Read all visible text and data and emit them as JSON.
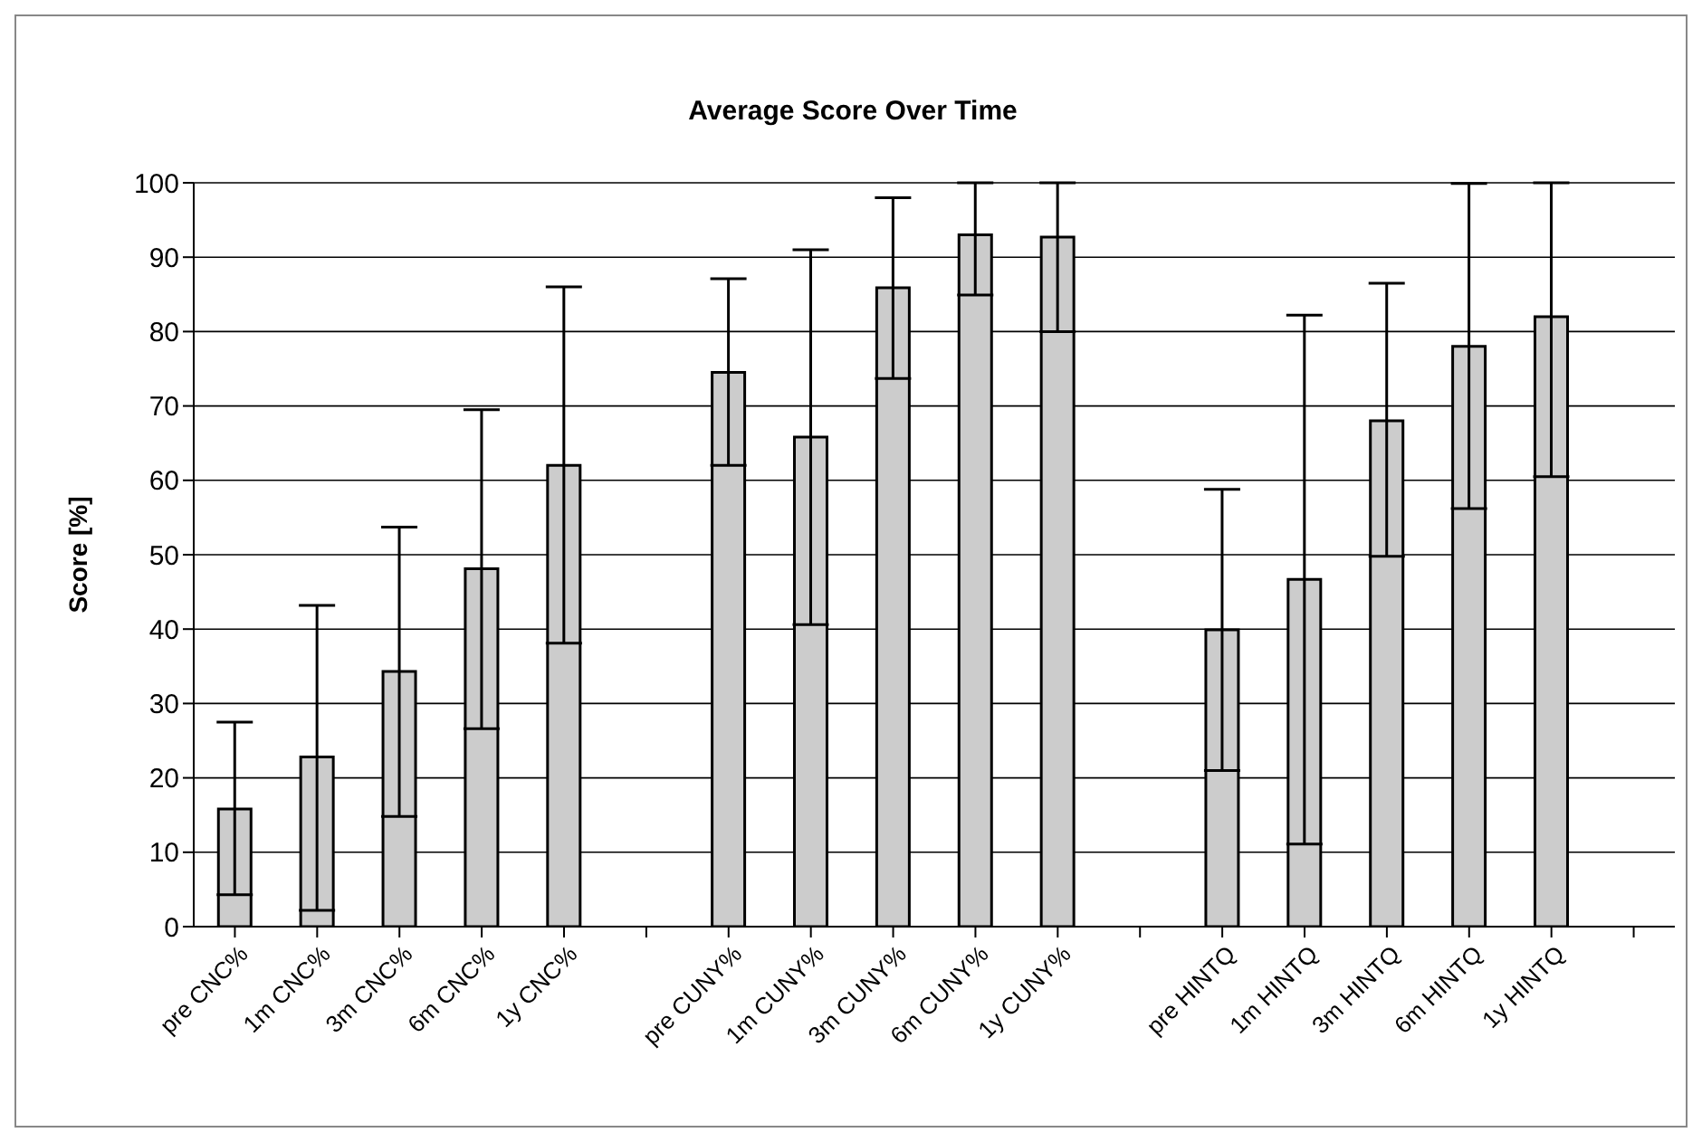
{
  "chart_data": {
    "type": "bar",
    "title": "Average Score Over Time",
    "ylabel": "Score [%]",
    "categories": [
      "pre CNC%",
      "1m CNC%",
      "3m CNC%",
      "6m CNC%",
      "1y CNC%",
      null,
      "pre CUNY%",
      "1m CUNY%",
      "3m CUNY%",
      "6m CUNY%",
      "1y CUNY%",
      null,
      "pre HINTQ",
      "1m HINTQ",
      "3m HINTQ",
      "6m HINTQ",
      "1y HINTQ",
      null
    ],
    "values": [
      15.8,
      22.8,
      34.3,
      48.1,
      62.0,
      null,
      74.5,
      65.8,
      85.9,
      93.0,
      92.7,
      null,
      39.9,
      46.7,
      68.0,
      78.0,
      82.0,
      null
    ],
    "errors": [
      [
        4.3,
        27.5
      ],
      [
        2.2,
        43.2
      ],
      [
        14.8,
        53.7
      ],
      [
        26.6,
        69.5
      ],
      [
        38.1,
        86.0
      ],
      null,
      [
        62.0,
        87.1
      ],
      [
        40.6,
        91.0
      ],
      [
        73.7,
        98.0
      ],
      [
        84.9,
        100
      ],
      [
        80.0,
        100
      ],
      null,
      [
        21.0,
        58.8
      ],
      [
        11.1,
        82.2
      ],
      [
        49.8,
        86.5
      ],
      [
        56.2,
        99.9
      ],
      [
        60.5,
        100
      ],
      null
    ],
    "color": "#cccccc",
    "ylim": [
      0,
      100
    ],
    "yticks": [
      0,
      10,
      20,
      30,
      40,
      50,
      60,
      70,
      80,
      90,
      100
    ],
    "grid": "y",
    "legend": false
  }
}
